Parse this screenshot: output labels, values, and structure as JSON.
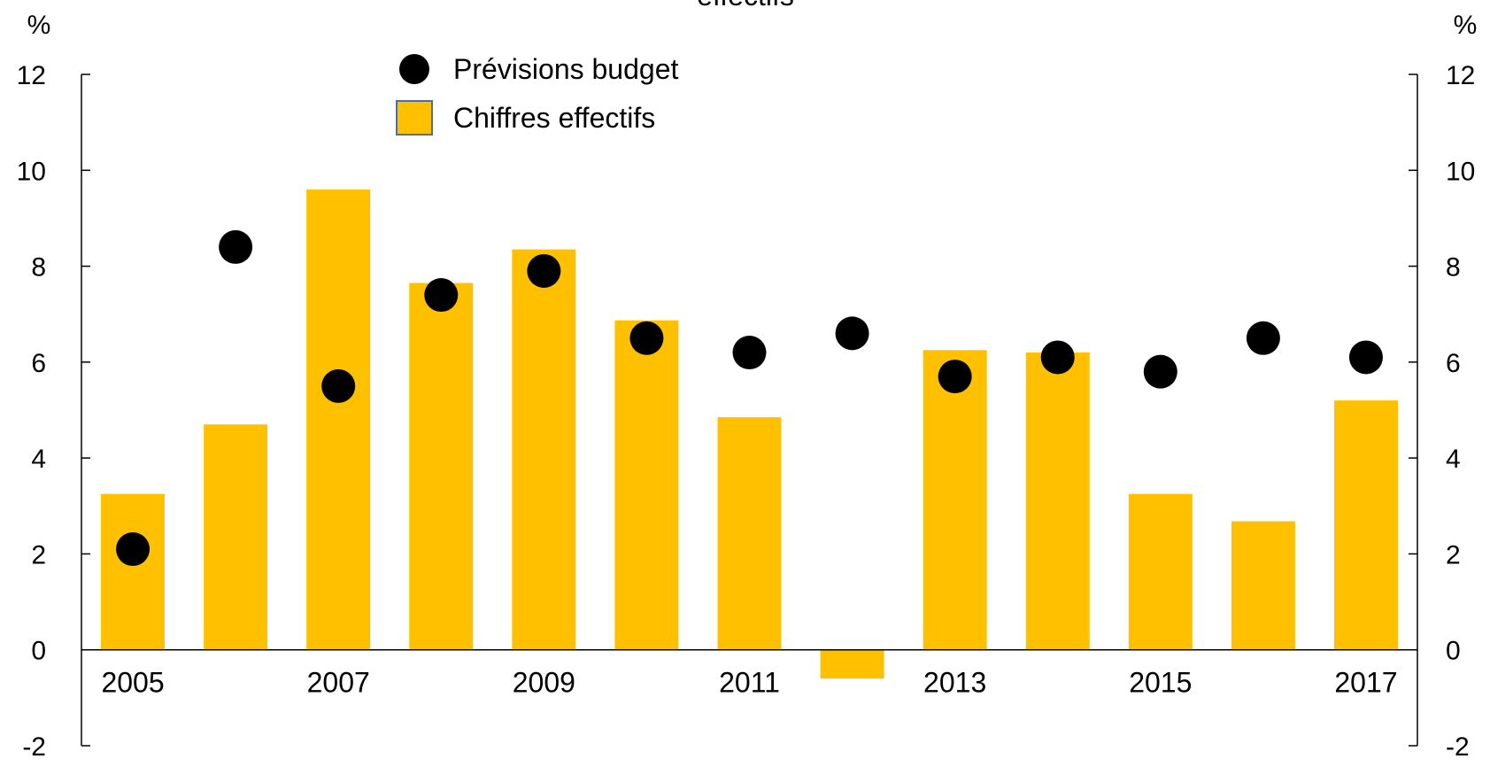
{
  "chart_data": {
    "type": "bar",
    "title": "effectifs",
    "y_unit_left": "%",
    "y_unit_right": "%",
    "ylim": [
      -2,
      12
    ],
    "yticks": [
      -2,
      0,
      2,
      4,
      6,
      8,
      10,
      12
    ],
    "categories": [
      "2005",
      "2006",
      "2007",
      "2008",
      "2009",
      "2010",
      "2011",
      "2012",
      "2013",
      "2014",
      "2015",
      "2016",
      "2017"
    ],
    "x_tick_labels": [
      "2005",
      "",
      "2007",
      "",
      "2009",
      "",
      "2011",
      "",
      "2013",
      "",
      "2015",
      "",
      "2017"
    ],
    "series": [
      {
        "name": "Chiffres effectifs",
        "mark": "bar",
        "color": "#FFC000",
        "values": [
          3.25,
          4.7,
          9.6,
          7.65,
          8.35,
          6.87,
          4.85,
          -0.6,
          6.25,
          6.2,
          3.25,
          2.68,
          5.2
        ]
      },
      {
        "name": "Prévisions budget",
        "mark": "point",
        "color": "#000000",
        "values": [
          2.1,
          8.4,
          5.5,
          7.4,
          7.9,
          6.5,
          6.2,
          6.6,
          5.7,
          6.1,
          5.8,
          6.5,
          6.1
        ]
      }
    ],
    "legend": {
      "position": "top-center",
      "entries": [
        "Prévisions budget",
        "Chiffres effectifs"
      ]
    },
    "grid": false
  }
}
